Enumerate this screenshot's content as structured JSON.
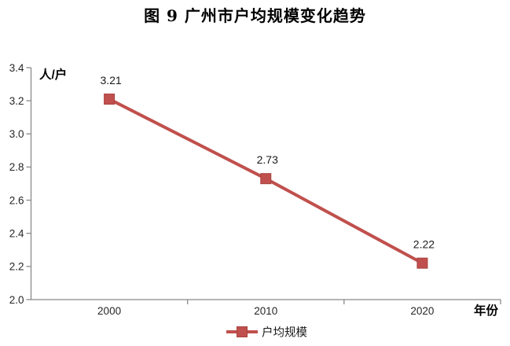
{
  "chart_data": {
    "type": "line",
    "title": "图 9 广州市户均规模变化趋势",
    "categories": [
      "2000",
      "2010",
      "2020"
    ],
    "series": [
      {
        "name": "户均规模",
        "values": [
          3.21,
          2.73,
          2.22
        ],
        "marker": "square"
      }
    ],
    "data_labels": [
      "3.21",
      "2.73",
      "2.22"
    ],
    "ylabel": "人/户",
    "xlabel": "年份",
    "ylim": [
      2.0,
      3.4
    ],
    "ytick_step": 0.2,
    "ytick_labels": [
      "2.0",
      "2.2",
      "2.4",
      "2.6",
      "2.8",
      "3.0",
      "3.2",
      "3.4"
    ],
    "grid": false,
    "legend_position": "bottom",
    "legend_entries": [
      "户均规模"
    ],
    "colors": {
      "series_line": "#C0504D",
      "marker_fill": "#C0504D",
      "marker_stroke": "#A9423F",
      "axis": "#898989",
      "tick_text": "#262626",
      "label_text": "#1A1A1A",
      "title_text": "#000000"
    }
  }
}
